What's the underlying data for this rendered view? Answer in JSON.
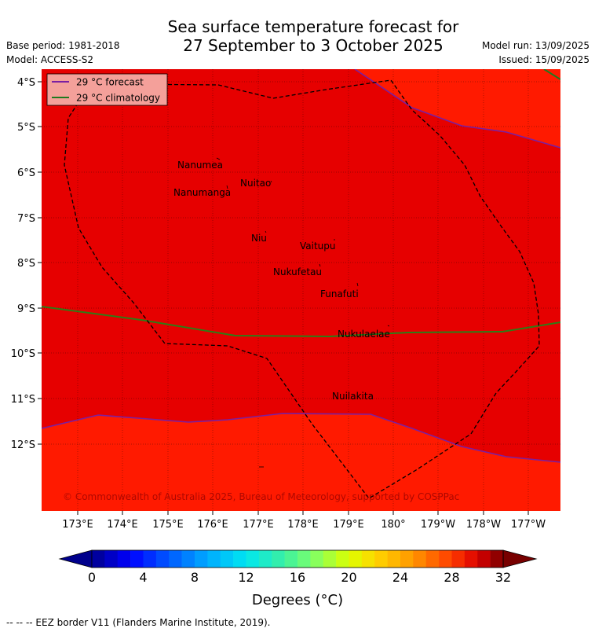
{
  "title": {
    "line1": "Sea surface temperature forecast for",
    "line2": "27 September to 3 October 2025"
  },
  "meta_left": {
    "base_period": "Base period: 1981-2018",
    "model": "Model: ACCESS-S2"
  },
  "meta_right": {
    "model_run": "Model run: 13/09/2025",
    "issued": "Issued: 15/09/2025"
  },
  "legend": {
    "forecast": "29 °C  forecast",
    "climatology": "29 °C  climatology"
  },
  "lat_labels": [
    "4°S",
    "5°S",
    "6°S",
    "7°S",
    "8°S",
    "9°S",
    "10°S",
    "11°S",
    "12°S"
  ],
  "lon_labels": [
    "173°E",
    "174°E",
    "175°E",
    "176°E",
    "177°E",
    "178°E",
    "179°E",
    "180°",
    "179°W",
    "178°W",
    "177°W"
  ],
  "islands": [
    "Nanumea",
    "Nuitao",
    "Nanumanga",
    "Niu",
    "Vaitupu",
    "Nukufetau",
    "Funafuti",
    "Nukulaelae",
    "Nuilakita"
  ],
  "copyright": "© Commonwealth of Australia 2025, Bureau of Meteorology, supported by COSPPac",
  "colorbar": {
    "ticks": [
      "0",
      "4",
      "8",
      "12",
      "16",
      "20",
      "24",
      "28",
      "32"
    ],
    "label": "Degrees (°C)"
  },
  "footnote": "--  --  -- EEZ border V11 (Flanders Marine Institute, 2019).",
  "colors": {
    "warm_region": "#e60000",
    "cool_region": "#ff1a00",
    "forecast_line": "#7a1fa2",
    "climatology_line": "#1f7a1f"
  }
}
